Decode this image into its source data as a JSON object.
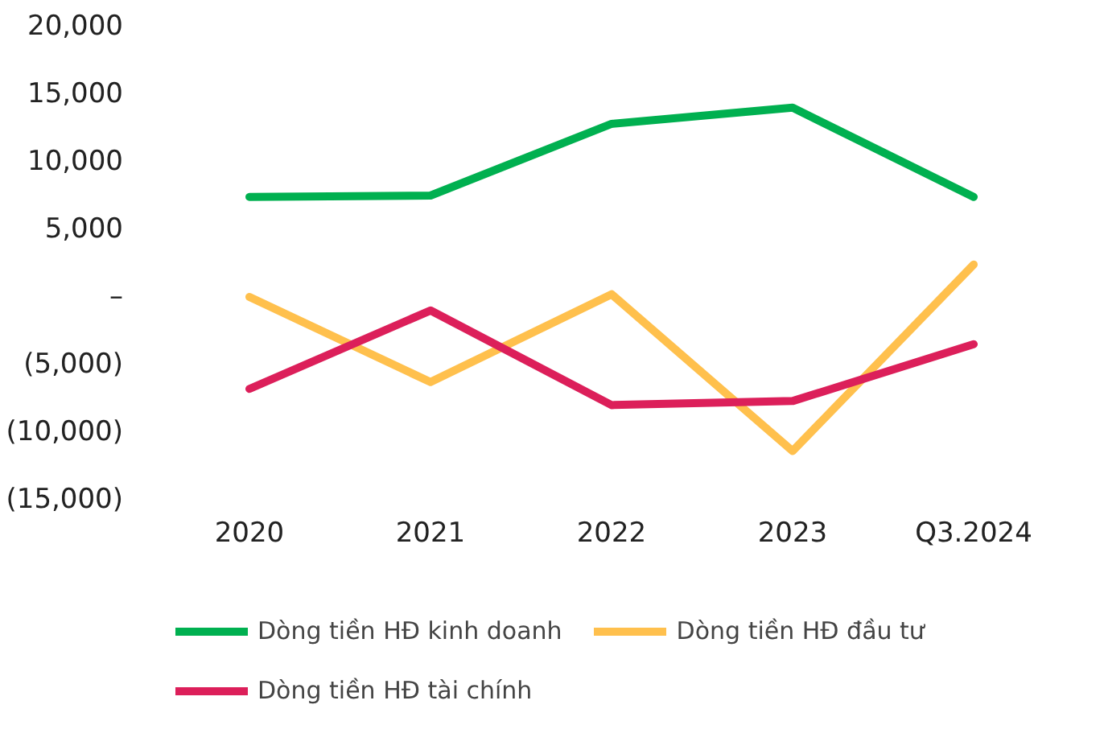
{
  "chart_data": {
    "type": "line",
    "categories": [
      "2020",
      "2021",
      "2022",
      "2023",
      "Q3.2024"
    ],
    "series": [
      {
        "name": "Dòng tiền HĐ kinh doanh",
        "color": "#00b050",
        "values": [
          7400,
          7500,
          12800,
          14000,
          7400
        ]
      },
      {
        "name": "Dòng tiền HĐ đầu tư",
        "color": "#ffc04d",
        "values": [
          0,
          -6300,
          200,
          -11400,
          2400
        ]
      },
      {
        "name": "Dòng tiền HĐ tài chính",
        "color": "#dc1f5a",
        "values": [
          -6800,
          -1000,
          -8000,
          -7700,
          -3500
        ]
      }
    ],
    "ylim": [
      -15000,
      20000
    ],
    "yticks": [
      {
        "value": -15000,
        "label": "(15,000)"
      },
      {
        "value": -10000,
        "label": "(10,000)"
      },
      {
        "value": -5000,
        "label": "(5,000)"
      },
      {
        "value": 0,
        "label": "–"
      },
      {
        "value": 5000,
        "label": "5,000"
      },
      {
        "value": 10000,
        "label": "10,000"
      },
      {
        "value": 15000,
        "label": "15,000"
      },
      {
        "value": 20000,
        "label": "20,000"
      }
    ],
    "grid": false,
    "legend": "bottom",
    "marker": "none",
    "line_style": "solid"
  }
}
